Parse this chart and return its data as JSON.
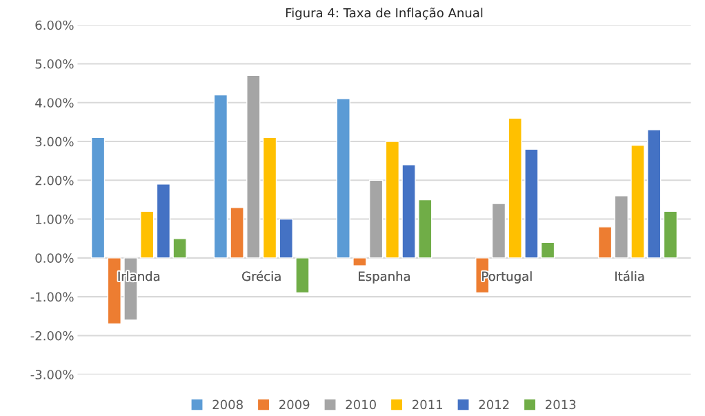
{
  "chart_data": {
    "type": "bar",
    "title": "Figura 4: Taxa de Inflação Anual",
    "categories": [
      "Irlanda",
      "Grécia",
      "Espanha",
      "Portugal",
      "Itália"
    ],
    "series": [
      {
        "name": "2008",
        "color": "#5b9bd5",
        "values": [
          3.1,
          4.2,
          4.1,
          null,
          null
        ]
      },
      {
        "name": "2009",
        "color": "#ed7d31",
        "values": [
          -1.7,
          1.3,
          -0.2,
          -0.9,
          0.8
        ]
      },
      {
        "name": "2010",
        "color": "#a5a5a5",
        "values": [
          -1.6,
          4.7,
          2.0,
          1.4,
          1.6
        ]
      },
      {
        "name": "2011",
        "color": "#ffc000",
        "values": [
          1.2,
          3.1,
          3.0,
          3.6,
          2.9
        ]
      },
      {
        "name": "2012",
        "color": "#4472c4",
        "values": [
          1.9,
          1.0,
          2.4,
          2.8,
          3.3
        ]
      },
      {
        "name": "2013",
        "color": "#70ad47",
        "values": [
          0.5,
          -0.9,
          1.5,
          0.4,
          1.2
        ]
      }
    ],
    "ylim": [
      -3,
      6
    ],
    "yticks": [
      {
        "value": -3,
        "label": "-3.00%"
      },
      {
        "value": -2,
        "label": "-2.00%"
      },
      {
        "value": -1,
        "label": "-1.00%"
      },
      {
        "value": 0,
        "label": "0.00%"
      },
      {
        "value": 1,
        "label": "1.00%"
      },
      {
        "value": 2,
        "label": "2.00%"
      },
      {
        "value": 3,
        "label": "3.00%"
      },
      {
        "value": 4,
        "label": "4.00%"
      },
      {
        "value": 5,
        "label": "5.00%"
      },
      {
        "value": 6,
        "label": "6.00%"
      }
    ],
    "grid": "y",
    "legend": "bottom"
  }
}
